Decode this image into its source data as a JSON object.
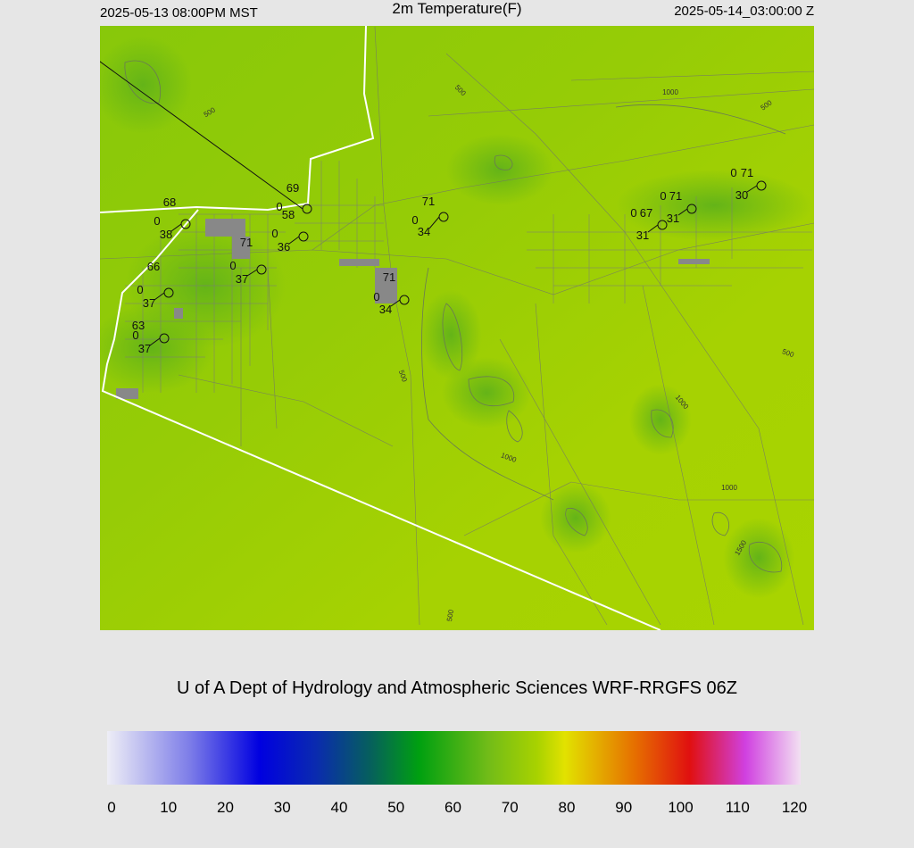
{
  "header": {
    "left": "2025-05-13 08:00PM MST",
    "title": "2m Temperature(F)",
    "right": "2025-05-14_03:00:00 Z"
  },
  "stations": [
    {
      "temp": "68",
      "wind": "0",
      "dewpoint": "38"
    },
    {
      "temp": "69",
      "wind": "0"
    },
    {
      "temp": "58",
      "wind": "0",
      "dewpoint": "36"
    },
    {
      "temp": "71",
      "wind": "0",
      "dewpoint": "37"
    },
    {
      "temp": "66",
      "wind": "0",
      "dewpoint": "37"
    },
    {
      "temp": "63",
      "wind": "0",
      "dewpoint": "37"
    },
    {
      "temp": "71",
      "wind": "0",
      "dewpoint": "34"
    },
    {
      "temp": "71",
      "wind": "0",
      "dewpoint": "34"
    },
    {
      "temp": "67",
      "wind": "0",
      "dewpoint": "31"
    },
    {
      "temp": "71",
      "wind": "0",
      "dewpoint": "31"
    },
    {
      "temp": "71",
      "wind": "0",
      "dewpoint": "30"
    }
  ],
  "contour_labels": [
    "500",
    "500",
    "1000",
    "500",
    "500",
    "1000",
    "500",
    "1000",
    "1000",
    "1500",
    "500"
  ],
  "credit": "U of A Dept of Hydrology and Atmospheric Sciences WRF-RRGFS 06Z",
  "colorbar": {
    "ticks": [
      0,
      10,
      20,
      30,
      40,
      50,
      60,
      70,
      80,
      90,
      100,
      110,
      120
    ]
  }
}
